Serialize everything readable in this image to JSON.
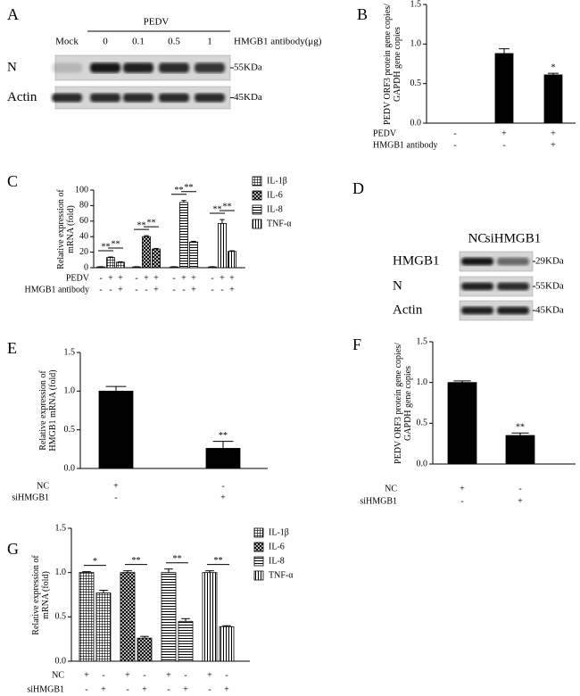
{
  "chart_data": [
    {
      "type": "bar",
      "label": "B",
      "ylabel": [
        "PEDV ORF3 protein gene copies/",
        "GAPDH gene copies"
      ],
      "values": [
        0,
        0.88,
        0.61
      ],
      "errors": [
        0,
        0.06,
        0.02
      ],
      "significance": [
        null,
        null,
        "*"
      ],
      "color": "#000000",
      "ylim": [
        0,
        1.5
      ],
      "yticks": [
        {
          "value": 0,
          "label": "0.0"
        },
        0.5,
        {
          "value": 1,
          "label": "1.0"
        },
        1.5
      ],
      "conditions": [
        {
          "name": "PEDV",
          "signs": [
            "-",
            "+",
            "+"
          ]
        },
        {
          "name": "HMGB1 antibody",
          "signs": [
            "-",
            "-",
            "+"
          ]
        }
      ]
    },
    {
      "type": "bar",
      "label": "C",
      "ylabel": [
        "Relative expression of",
        "mRNA (fold)"
      ],
      "series": [
        {
          "name": "IL-1β",
          "pattern": "crosshatch",
          "values": [
            1,
            13,
            7
          ],
          "errors": [
            0.3,
            0.8,
            0.6
          ],
          "significance": [
            "**",
            "**"
          ]
        },
        {
          "name": "IL-6",
          "pattern": "checker",
          "values": [
            1,
            40,
            24
          ],
          "errors": [
            0.3,
            1.2,
            0.8
          ],
          "significance": [
            "**",
            "**"
          ]
        },
        {
          "name": "IL-8",
          "pattern": "horizontal",
          "values": [
            1,
            84,
            33
          ],
          "errors": [
            0.3,
            2.5,
            1
          ],
          "significance": [
            "**",
            "**"
          ]
        },
        {
          "name": "TNF-α",
          "pattern": "vertical",
          "values": [
            1,
            57,
            21
          ],
          "errors": [
            0.3,
            5,
            0.8
          ],
          "significance": [
            "**",
            "**"
          ]
        }
      ],
      "ylim": [
        0,
        100
      ],
      "yticks": [
        0,
        20,
        40,
        60,
        80,
        100
      ],
      "conditions": [
        {
          "name": "PEDV",
          "signs": [
            "-",
            "+",
            "+",
            "-",
            "+",
            "+",
            "-",
            "+",
            "+",
            "-",
            "+",
            "+"
          ]
        },
        {
          "name": "HMGB1 antibody",
          "signs": [
            "-",
            "-",
            "+",
            "-",
            "-",
            "+",
            "-",
            "-",
            "+",
            "-",
            "-",
            "+"
          ]
        }
      ]
    },
    {
      "type": "bar",
      "label": "E",
      "ylabel": [
        "Relative expression of",
        "HMGB1 mRNA (fold)"
      ],
      "values": [
        1,
        0.26
      ],
      "errors": [
        0.06,
        0.09
      ],
      "significance": [
        null,
        "**"
      ],
      "color": "#000000",
      "ylim": [
        0,
        1.5
      ],
      "yticks": [
        {
          "value": 0,
          "label": "0.0"
        },
        0.5,
        {
          "value": 1,
          "label": "1.0"
        },
        1.5
      ],
      "conditions": [
        {
          "name": "NC",
          "signs": [
            "+",
            "-"
          ]
        },
        {
          "name": "siHMGB1",
          "signs": [
            "-",
            "+"
          ]
        }
      ]
    },
    {
      "type": "bar",
      "label": "F",
      "ylabel": [
        "PEDV ORF3 protein gene copies/",
        "GAPDH gene copies"
      ],
      "values": [
        1,
        0.35
      ],
      "errors": [
        0.02,
        0.03
      ],
      "significance": [
        null,
        "**"
      ],
      "color": "#000000",
      "ylim": [
        0,
        1.5
      ],
      "yticks": [
        {
          "value": 0,
          "label": "0.0"
        },
        0.5,
        {
          "value": 1,
          "label": "1.0"
        },
        1.5
      ],
      "conditions": [
        {
          "name": "NC",
          "signs": [
            "+",
            "-"
          ]
        },
        {
          "name": "siHMGB1",
          "signs": [
            "-",
            "+"
          ]
        }
      ]
    },
    {
      "type": "bar",
      "label": "G",
      "ylabel": [
        "Relative expression of",
        "mRNA (fold)"
      ],
      "series": [
        {
          "name": "IL-1β",
          "pattern": "crosshatch",
          "values": [
            1,
            0.77
          ],
          "errors": [
            0.01,
            0.03
          ],
          "significance": [
            "*"
          ]
        },
        {
          "name": "IL-6",
          "pattern": "checker",
          "values": [
            1,
            0.26
          ],
          "errors": [
            0.02,
            0.02
          ],
          "significance": [
            "**"
          ]
        },
        {
          "name": "IL-8",
          "pattern": "horizontal",
          "values": [
            1,
            0.45
          ],
          "errors": [
            0.04,
            0.03
          ],
          "significance": [
            "**"
          ]
        },
        {
          "name": "TNF-α",
          "pattern": "vertical",
          "values": [
            1,
            0.39
          ],
          "errors": [
            0.02,
            0.01
          ],
          "significance": [
            "**"
          ]
        }
      ],
      "ylim": [
        0,
        1.5
      ],
      "yticks": [
        {
          "value": 0,
          "label": "0.0"
        },
        0.5,
        {
          "value": 1,
          "label": "1.0"
        },
        1.5
      ],
      "conditions": [
        {
          "name": "NC",
          "signs": [
            "+",
            "-",
            "+",
            "-",
            "+",
            "-",
            "+",
            "-"
          ]
        },
        {
          "name": "siHMGB1",
          "signs": [
            "-",
            "+",
            "-",
            "+",
            "-",
            "+",
            "-",
            "+"
          ]
        }
      ]
    }
  ],
  "blots": [
    {
      "label": "A",
      "header": "PEDV",
      "lanes": [
        "Mock",
        "0",
        "0.1",
        "0.5",
        "1"
      ],
      "lane_title": "HMGB1 antibody(μg)",
      "rows": [
        {
          "name": "N",
          "size": "55KDa"
        },
        {
          "name": "Actin",
          "size": "45KDa"
        }
      ]
    },
    {
      "label": "D",
      "lanes": [
        "NC",
        "siHMGB1"
      ],
      "rows": [
        {
          "name": "HMGB1",
          "size": "29KDa"
        },
        {
          "name": "N",
          "size": "55KDa"
        },
        {
          "name": "Actin",
          "size": "45KDa"
        }
      ]
    }
  ]
}
